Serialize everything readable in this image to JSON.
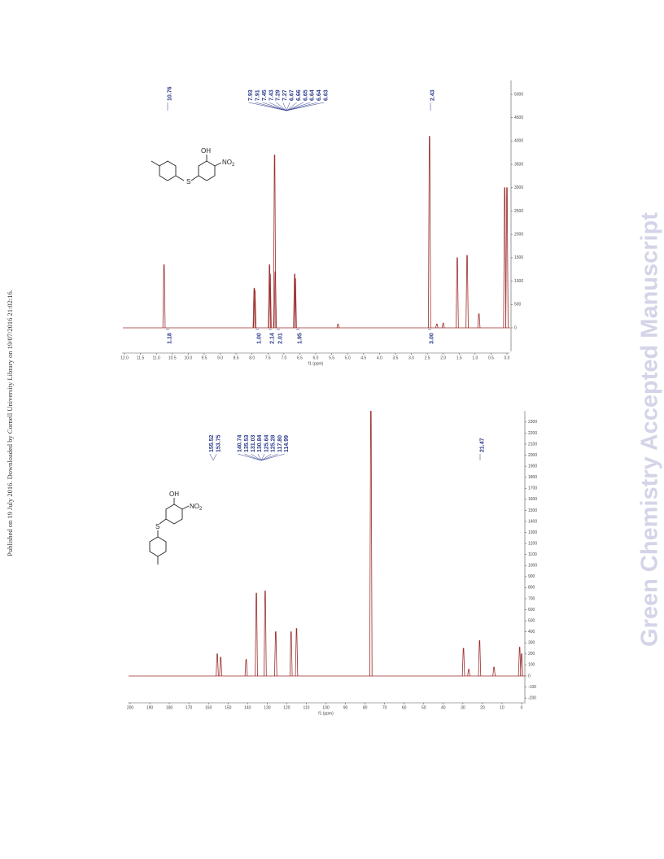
{
  "side_note": "Published on 19 July 2016. Downloaded by Cornell University Library on 19/07/2016 21:02:16.",
  "watermark": "Green Chemistry Accepted Manuscript",
  "spectra": [
    {
      "xlabel": "f1 (ppm)",
      "xlim": [
        12,
        0
      ],
      "xticks": [
        {
          "value": 12,
          "label": "12.0"
        },
        {
          "value": 11.5,
          "label": "11.5"
        },
        {
          "value": 11,
          "label": "11.0"
        },
        {
          "value": 10.5,
          "label": "10.5"
        },
        {
          "value": 10,
          "label": "10.0"
        },
        {
          "value": 9.5,
          "label": "9.5"
        },
        {
          "value": 9,
          "label": "9.0"
        },
        {
          "value": 8.5,
          "label": "8.5"
        },
        {
          "value": 8,
          "label": "8.0"
        },
        {
          "value": 7.5,
          "label": "7.5"
        },
        {
          "value": 7,
          "label": "7.0"
        },
        {
          "value": 6.5,
          "label": "6.5"
        },
        {
          "value": 6,
          "label": "6.0"
        },
        {
          "value": 5.5,
          "label": "5.5"
        },
        {
          "value": 5,
          "label": "5.0"
        },
        {
          "value": 4.5,
          "label": "4.5"
        },
        {
          "value": 4,
          "label": "4.0"
        },
        {
          "value": 3.5,
          "label": "3.5"
        },
        {
          "value": 3,
          "label": "3.0"
        },
        {
          "value": 2.5,
          "label": "2.5"
        },
        {
          "value": 2,
          "label": "2.0"
        },
        {
          "value": 1.5,
          "label": "1.5"
        },
        {
          "value": 1,
          "label": "1.0"
        },
        {
          "value": 0.5,
          "label": "0.5"
        },
        {
          "value": 0,
          "label": "0.0"
        }
      ],
      "ylim": [
        -500,
        5300
      ],
      "yticks": [
        0,
        500,
        1000,
        1500,
        2000,
        2500,
        3000,
        3500,
        4000,
        4500,
        5000
      ],
      "peak_labels": [
        [
          "10.76"
        ],
        [
          "7.93",
          "7.91",
          "7.45",
          "7.43",
          "7.29",
          "7.27",
          "6.67",
          "6.66",
          "6.65",
          "6.64",
          "6.64",
          "6.63"
        ],
        [
          "2.43"
        ]
      ],
      "integrals": [
        "1.18",
        "1.00",
        "2.14",
        "2.01",
        "1.95",
        "3.00"
      ],
      "peaks": {
        "ppm": [
          10.76,
          7.93,
          7.91,
          7.45,
          7.43,
          7.29,
          7.27,
          6.66,
          6.64,
          5.3,
          2.43,
          2.2,
          2.0,
          1.56,
          1.25,
          0.88,
          0.07,
          0.0
        ],
        "height": [
          1350,
          850,
          800,
          1350,
          1150,
          3700,
          1200,
          1150,
          1050,
          80,
          4100,
          80,
          100,
          1500,
          1550,
          300,
          3000,
          3000
        ]
      },
      "structure_labels": [
        "OH",
        "S",
        "NO",
        "2"
      ]
    },
    {
      "xlabel": "f1 (ppm)",
      "xlim": [
        200,
        0
      ],
      "xticks": [
        200,
        190,
        180,
        170,
        160,
        150,
        140,
        130,
        120,
        110,
        100,
        90,
        80,
        70,
        60,
        50,
        40,
        30,
        20,
        10,
        0
      ],
      "ylim": [
        -250,
        2400
      ],
      "yticks": [
        -200,
        -100,
        0,
        100,
        200,
        300,
        400,
        500,
        600,
        700,
        800,
        900,
        1000,
        1100,
        1200,
        1300,
        1400,
        1500,
        1600,
        1700,
        1800,
        1900,
        2000,
        2100,
        2200,
        2300
      ],
      "peak_labels": [
        [
          "155.52",
          "153.75"
        ],
        [
          "140.74",
          "135.53",
          "131.03",
          "130.84",
          "125.64",
          "125.28",
          "117.80",
          "114.99"
        ],
        [
          "21.47"
        ]
      ],
      "peaks": {
        "ppm": [
          155.52,
          153.75,
          140.74,
          135.53,
          131.03,
          125.64,
          117.8,
          114.99,
          77.0,
          29.7,
          27.0,
          21.47,
          14.1,
          1.0,
          0.0
        ],
        "height": [
          200,
          170,
          150,
          750,
          770,
          400,
          400,
          430,
          2450,
          250,
          60,
          320,
          80,
          260,
          200
        ]
      },
      "structure_labels": [
        "OH",
        "NO",
        "2",
        "S"
      ]
    }
  ]
}
